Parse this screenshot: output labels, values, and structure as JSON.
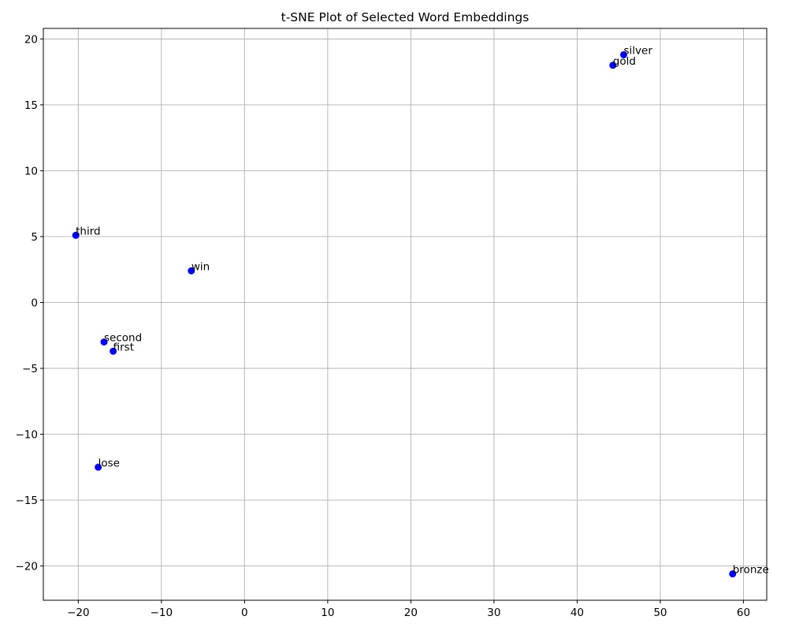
{
  "chart_data": {
    "type": "scatter",
    "title": "t-SNE Plot of Selected Word Embeddings",
    "xlabel": "",
    "ylabel": "",
    "xlim": [
      -24.2,
      62.8
    ],
    "ylim": [
      -22.6,
      20.8
    ],
    "xticks": [
      -20,
      -10,
      0,
      10,
      20,
      30,
      40,
      50,
      60
    ],
    "yticks": [
      -20,
      -15,
      -10,
      -5,
      0,
      5,
      10,
      15,
      20
    ],
    "xtick_labels": [
      "−20",
      "−10",
      "0",
      "10",
      "20",
      "30",
      "40",
      "50",
      "60"
    ],
    "ytick_labels": [
      "−20",
      "−15",
      "−10",
      "−5",
      "0",
      "5",
      "10",
      "15",
      "20"
    ],
    "grid": true,
    "marker_color": "#0000ff",
    "points": [
      {
        "label": "silver",
        "x": 45.6,
        "y": 18.8
      },
      {
        "label": "gold",
        "x": 44.3,
        "y": 18.0
      },
      {
        "label": "third",
        "x": -20.3,
        "y": 5.1
      },
      {
        "label": "win",
        "x": -6.4,
        "y": 2.4
      },
      {
        "label": "second",
        "x": -16.9,
        "y": -3.0
      },
      {
        "label": "first",
        "x": -15.8,
        "y": -3.7
      },
      {
        "label": "lose",
        "x": -17.6,
        "y": -12.5
      },
      {
        "label": "bronze",
        "x": 58.7,
        "y": -20.6
      }
    ]
  }
}
